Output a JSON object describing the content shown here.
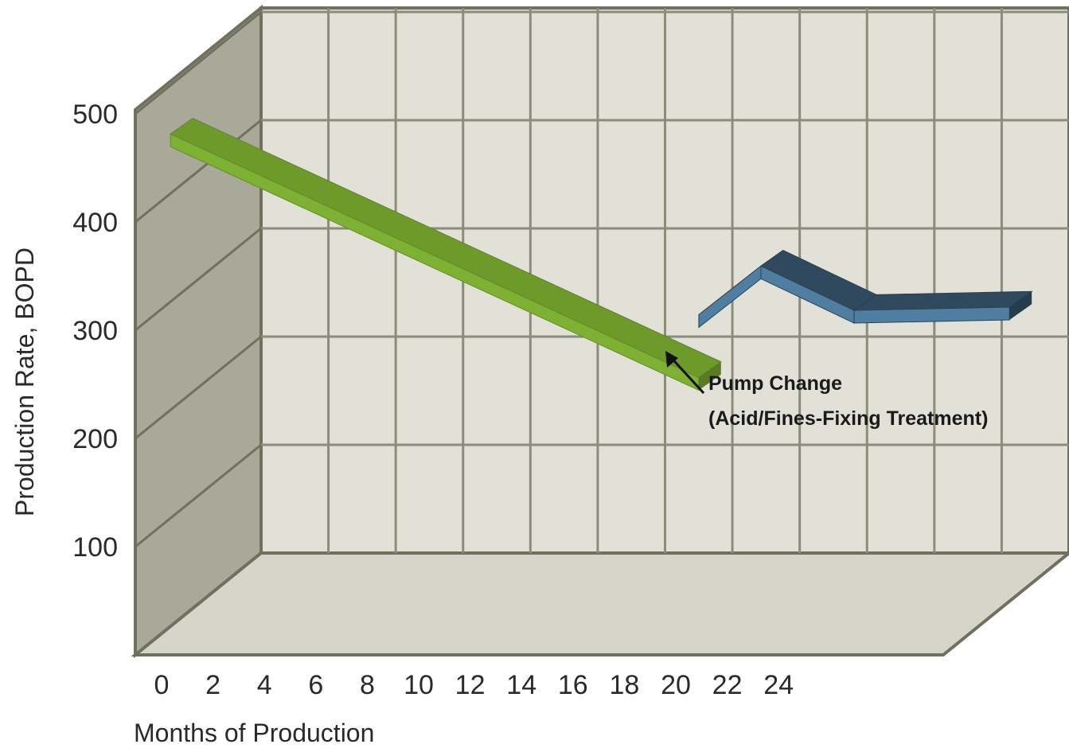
{
  "chart_data": {
    "type": "line",
    "title": "",
    "xlabel": "Months of Production",
    "ylabel": "Production Rate, BOPD",
    "x_ticks": [
      "0",
      "2",
      "4",
      "6",
      "8",
      "10",
      "12",
      "14",
      "16",
      "18",
      "20",
      "22",
      "24"
    ],
    "y_ticks": [
      "100",
      "200",
      "300",
      "400",
      "500"
    ],
    "xlim": [
      0,
      26
    ],
    "ylim": [
      0,
      500
    ],
    "grid": true,
    "three_d": true,
    "series": [
      {
        "color": "#6e9a2c",
        "x": [
          0,
          17
        ],
        "y": [
          455,
          230
        ]
      },
      {
        "color": "#2f4a5e",
        "x": [
          17,
          19,
          22,
          27
        ],
        "y": [
          288,
          333,
          292,
          295
        ]
      }
    ],
    "annotation": {
      "line1": "Pump Change",
      "line2": "(Acid/Fines-Fixing Treatment)"
    }
  }
}
